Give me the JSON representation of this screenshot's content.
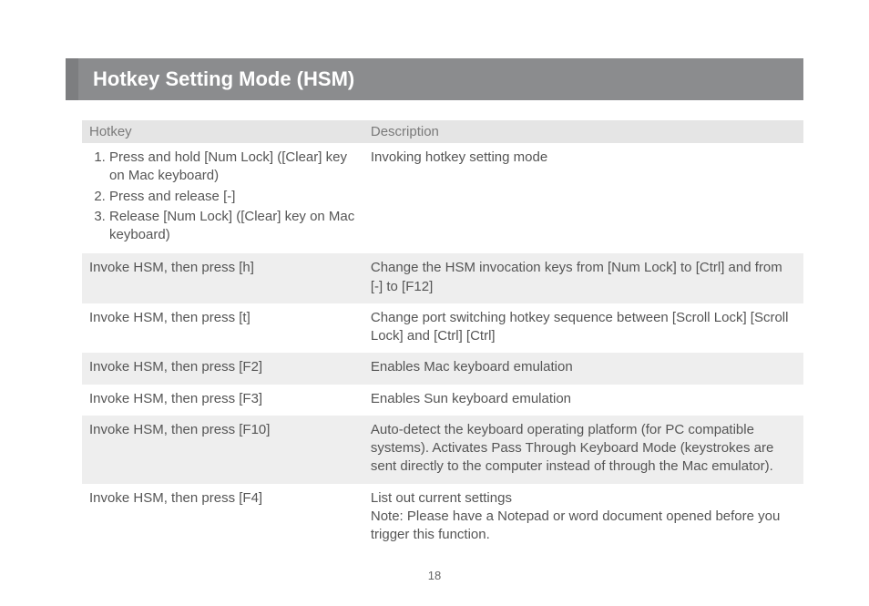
{
  "title": "Hotkey Setting Mode (HSM)",
  "page_number": "18",
  "colors": {
    "title_bar_bg": "#8b8c8e",
    "title_bar_accent": "#7d7e80",
    "title_text": "#ffffff",
    "header_bg": "#e5e5e5",
    "shaded_row_bg": "#eeeeee",
    "body_text": "#555555",
    "header_text": "#7a7a7a",
    "page_bg": "#ffffff"
  },
  "table": {
    "headers": {
      "hotkey": "Hotkey",
      "description": "Description"
    },
    "rows": [
      {
        "shaded": false,
        "hotkey_steps": [
          "Press and hold [Num Lock] ([Clear] key on Mac keyboard)",
          "Press and release [-]",
          "Release [Num Lock] ([Clear] key on Mac keyboard)"
        ],
        "description": "Invoking hotkey setting mode"
      },
      {
        "shaded": true,
        "hotkey": "Invoke HSM, then press [h]",
        "description": "Change the HSM invocation keys from [Num Lock] to [Ctrl] and from [-] to [F12]"
      },
      {
        "shaded": false,
        "hotkey": "Invoke HSM, then press [t]",
        "description": "Change port switching hotkey sequence between [Scroll Lock] [Scroll Lock] and [Ctrl] [Ctrl]"
      },
      {
        "shaded": true,
        "hotkey": "Invoke HSM, then press [F2]",
        "description": "Enables Mac keyboard emulation"
      },
      {
        "shaded": false,
        "hotkey": "Invoke HSM, then press [F3]",
        "description": "Enables Sun keyboard emulation"
      },
      {
        "shaded": true,
        "hotkey": "Invoke HSM, then press [F10]",
        "description": "Auto-detect the keyboard operating platform (for PC compatible systems). Activates Pass Through Keyboard Mode (keystrokes are sent directly to the computer instead of through the Mac emulator)."
      },
      {
        "shaded": false,
        "hotkey": "Invoke HSM, then press [F4]",
        "description": "List out current settings\nNote: Please have a Notepad or word document opened before you trigger this function."
      }
    ]
  }
}
